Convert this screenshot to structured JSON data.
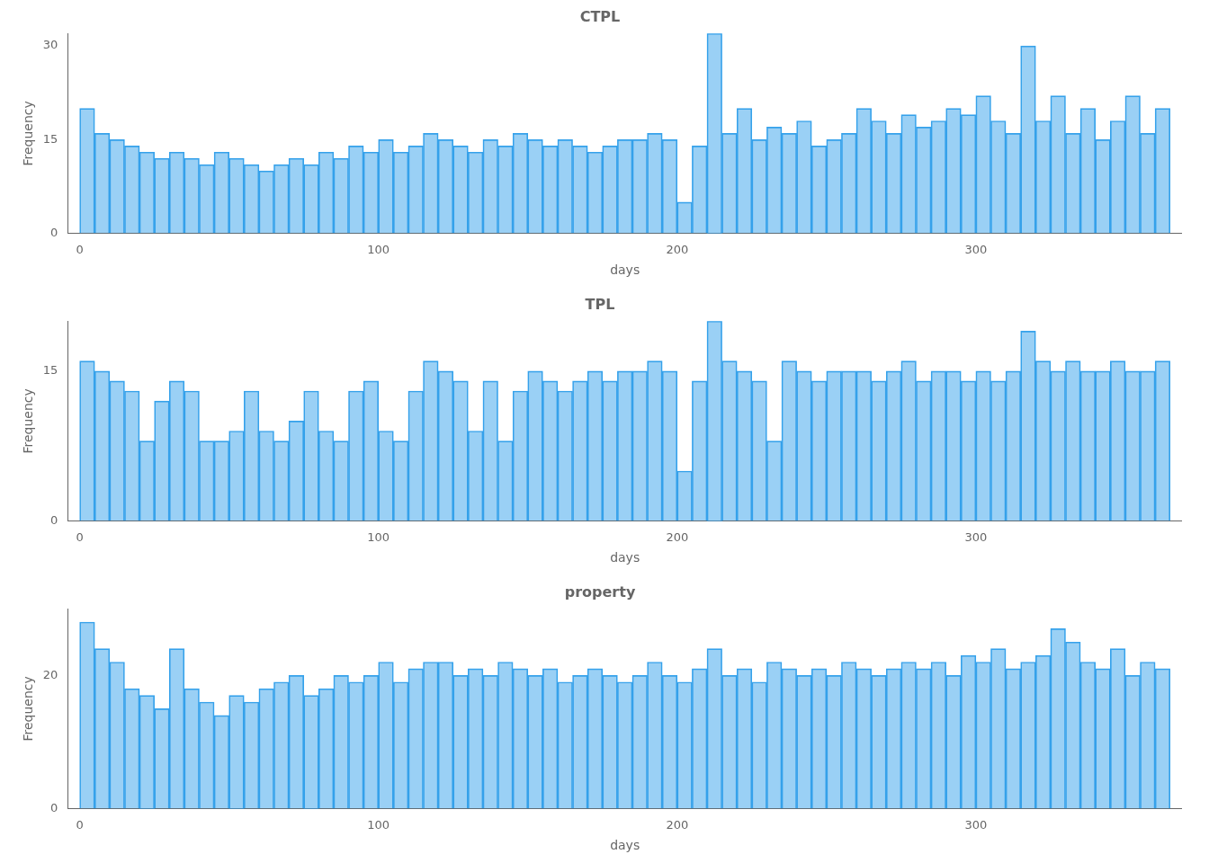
{
  "chart_data": [
    {
      "type": "histogram",
      "title": "CTPL",
      "xlabel": "days",
      "ylabel": "Frequency",
      "bins": [
        0,
        5,
        10,
        15,
        20,
        25,
        30,
        35,
        40,
        45,
        50,
        55,
        60,
        65,
        70,
        75,
        80,
        85,
        90,
        95,
        100,
        105,
        110,
        115,
        120,
        125,
        130,
        135,
        140,
        145,
        150,
        155,
        160,
        165,
        170,
        175,
        180,
        185,
        190,
        195,
        200,
        205,
        210,
        215,
        220,
        225,
        230,
        235,
        240,
        245,
        250,
        255,
        260,
        265,
        270,
        275,
        280,
        285,
        290,
        295,
        300,
        305,
        310,
        315,
        320,
        325,
        330,
        335,
        340,
        345,
        350,
        355,
        360,
        365
      ],
      "values": [
        20,
        16,
        15,
        14,
        13,
        12,
        13,
        12,
        11,
        13,
        12,
        11,
        10,
        11,
        12,
        11,
        13,
        12,
        14,
        13,
        15,
        13,
        14,
        16,
        15,
        14,
        13,
        15,
        14,
        16,
        15,
        14,
        15,
        14,
        13,
        14,
        15,
        15,
        16,
        15,
        5,
        14,
        32,
        16,
        20,
        15,
        17,
        16,
        18,
        14,
        15,
        16,
        20,
        18,
        16,
        19,
        17,
        18,
        20,
        19,
        22,
        18,
        16,
        30,
        18,
        22,
        16,
        20,
        15,
        18,
        22,
        16,
        20
      ],
      "xlim": [
        -4,
        369
      ],
      "xticks": [
        0,
        100,
        200,
        300
      ],
      "ylim": [
        0,
        32
      ],
      "yticks": [
        0,
        15,
        30
      ],
      "grid": false
    },
    {
      "type": "histogram",
      "title": "TPL",
      "xlabel": "days",
      "ylabel": "Frequency",
      "bins": [
        0,
        5,
        10,
        15,
        20,
        25,
        30,
        35,
        40,
        45,
        50,
        55,
        60,
        65,
        70,
        75,
        80,
        85,
        90,
        95,
        100,
        105,
        110,
        115,
        120,
        125,
        130,
        135,
        140,
        145,
        150,
        155,
        160,
        165,
        170,
        175,
        180,
        185,
        190,
        195,
        200,
        205,
        210,
        215,
        220,
        225,
        230,
        235,
        240,
        245,
        250,
        255,
        260,
        265,
        270,
        275,
        280,
        285,
        290,
        295,
        300,
        305,
        310,
        315,
        320,
        325,
        330,
        335,
        340,
        345,
        350,
        355,
        360,
        365
      ],
      "values": [
        16,
        15,
        14,
        13,
        8,
        12,
        14,
        13,
        8,
        8,
        9,
        13,
        9,
        8,
        10,
        13,
        9,
        8,
        13,
        14,
        9,
        8,
        13,
        16,
        15,
        14,
        9,
        14,
        8,
        13,
        15,
        14,
        13,
        14,
        15,
        14,
        15,
        15,
        16,
        15,
        5,
        14,
        20,
        16,
        15,
        14,
        8,
        16,
        15,
        14,
        15,
        15,
        15,
        14,
        15,
        16,
        14,
        15,
        15,
        14,
        15,
        14,
        15,
        19,
        16,
        15,
        16,
        15,
        15,
        16,
        15,
        15,
        16
      ],
      "xlim": [
        -4,
        369
      ],
      "xticks": [
        0,
        100,
        200,
        300
      ],
      "ylim": [
        0,
        20
      ],
      "yticks": [
        0,
        15
      ],
      "grid": false
    },
    {
      "type": "histogram",
      "title": "property",
      "xlabel": "days",
      "ylabel": "Frequency",
      "bins": [
        0,
        5,
        10,
        15,
        20,
        25,
        30,
        35,
        40,
        45,
        50,
        55,
        60,
        65,
        70,
        75,
        80,
        85,
        90,
        95,
        100,
        105,
        110,
        115,
        120,
        125,
        130,
        135,
        140,
        145,
        150,
        155,
        160,
        165,
        170,
        175,
        180,
        185,
        190,
        195,
        200,
        205,
        210,
        215,
        220,
        225,
        230,
        235,
        240,
        245,
        250,
        255,
        260,
        265,
        270,
        275,
        280,
        285,
        290,
        295,
        300,
        305,
        310,
        315,
        320,
        325,
        330,
        335,
        340,
        345,
        350,
        355,
        360,
        365
      ],
      "values": [
        28,
        24,
        22,
        18,
        17,
        15,
        24,
        18,
        16,
        14,
        17,
        16,
        18,
        19,
        20,
        17,
        18,
        20,
        19,
        20,
        22,
        19,
        21,
        22,
        22,
        20,
        21,
        20,
        22,
        21,
        20,
        21,
        19,
        20,
        21,
        20,
        19,
        20,
        22,
        20,
        19,
        21,
        24,
        20,
        21,
        19,
        22,
        21,
        20,
        21,
        20,
        22,
        21,
        20,
        21,
        22,
        21,
        22,
        20,
        23,
        22,
        24,
        21,
        22,
        23,
        27,
        25,
        22,
        21,
        24,
        20,
        22,
        21
      ],
      "xlim": [
        -4,
        369
      ],
      "xticks": [
        0,
        100,
        200,
        300
      ],
      "ylim": [
        0,
        30
      ],
      "yticks": [
        0,
        20
      ],
      "grid": false
    }
  ]
}
